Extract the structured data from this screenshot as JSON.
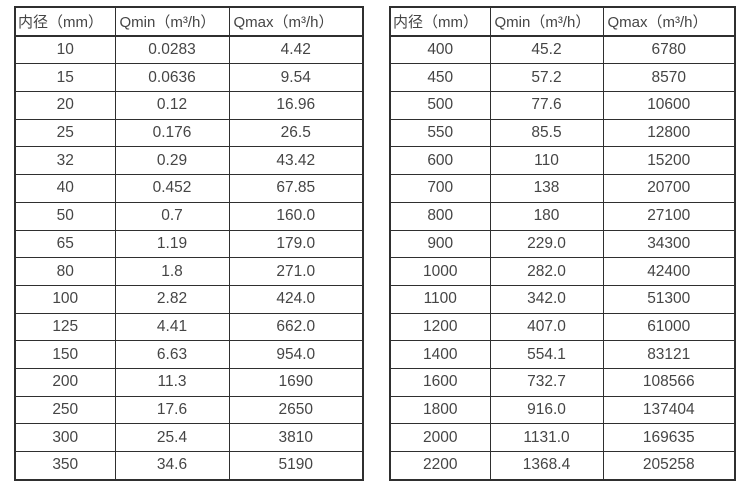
{
  "page": {
    "background_color": "#ffffff",
    "text_color": "#454545",
    "border_color": "#2f2f2f"
  },
  "headers": [
    "内径（mm）",
    "Qmin（m³/h）",
    "Qmax（m³/h）"
  ],
  "tables": [
    {
      "id": "small-diameters",
      "rows": [
        [
          "10",
          "0.0283",
          "4.42"
        ],
        [
          "15",
          "0.0636",
          "9.54"
        ],
        [
          "20",
          "0.12",
          "16.96"
        ],
        [
          "25",
          "0.176",
          "26.5"
        ],
        [
          "32",
          "0.29",
          "43.42"
        ],
        [
          "40",
          "0.452",
          "67.85"
        ],
        [
          "50",
          "0.7",
          "160.0"
        ],
        [
          "65",
          "1.19",
          "179.0"
        ],
        [
          "80",
          "1.8",
          "271.0"
        ],
        [
          "100",
          "2.82",
          "424.0"
        ],
        [
          "125",
          "4.41",
          "662.0"
        ],
        [
          "150",
          "6.63",
          "954.0"
        ],
        [
          "200",
          "11.3",
          "1690"
        ],
        [
          "250",
          "17.6",
          "2650"
        ],
        [
          "300",
          "25.4",
          "3810"
        ],
        [
          "350",
          "34.6",
          "5190"
        ]
      ]
    },
    {
      "id": "large-diameters",
      "rows": [
        [
          "400",
          "45.2",
          "6780"
        ],
        [
          "450",
          "57.2",
          "8570"
        ],
        [
          "500",
          "77.6",
          "10600"
        ],
        [
          "550",
          "85.5",
          "12800"
        ],
        [
          "600",
          "110",
          "15200"
        ],
        [
          "700",
          "138",
          "20700"
        ],
        [
          "800",
          "180",
          "27100"
        ],
        [
          "900",
          "229.0",
          "34300"
        ],
        [
          "1000",
          "282.0",
          "42400"
        ],
        [
          "1100",
          "342.0",
          "51300"
        ],
        [
          "1200",
          "407.0",
          "61000"
        ],
        [
          "1400",
          "554.1",
          "83121"
        ],
        [
          "1600",
          "732.7",
          "108566"
        ],
        [
          "1800",
          "916.0",
          "137404"
        ],
        [
          "2000",
          "1131.0",
          "169635"
        ],
        [
          "2200",
          "1368.4",
          "205258"
        ]
      ]
    }
  ]
}
